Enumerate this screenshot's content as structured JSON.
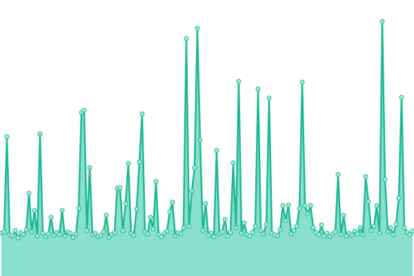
{
  "chart_data": {
    "type": "area",
    "line_color": "#1fb894",
    "fill_color": "#89e0cc",
    "marker_color": "#a6eadb",
    "ylim": [
      0,
      400
    ],
    "values": [
      62,
      64,
      202,
      60,
      58,
      66,
      55,
      63,
      60,
      67,
      120,
      64,
      95,
      58,
      206,
      62,
      57,
      61,
      85,
      59,
      63,
      60,
      95,
      58,
      64,
      62,
      56,
      61,
      98,
      237,
      240,
      66,
      157,
      60,
      62,
      57,
      59,
      64,
      88,
      56,
      60,
      63,
      127,
      128,
      66,
      105,
      163,
      62,
      59,
      97,
      165,
      235,
      64,
      61,
      85,
      68,
      137,
      60,
      57,
      62,
      65,
      93,
      107,
      58,
      63,
      61,
      70,
      344,
      72,
      123,
      157,
      359,
      197,
      66,
      105,
      59,
      62,
      57,
      182,
      61,
      64,
      82,
      58,
      63,
      164,
      70,
      282,
      62,
      77,
      60,
      58,
      63,
      72,
      271,
      66,
      61,
      75,
      258,
      62,
      60,
      58,
      67,
      102,
      80,
      103,
      61,
      66,
      72,
      98,
      281,
      102,
      90,
      102,
      70,
      63,
      60,
      74,
      58,
      62,
      57,
      61,
      64,
      147,
      60,
      88,
      58,
      62,
      59,
      65,
      61,
      70,
      60,
      144,
      108,
      66,
      72,
      102,
      62,
      369,
      140,
      64,
      70,
      60,
      75,
      113,
      259,
      70,
      63,
      60,
      65
    ]
  }
}
